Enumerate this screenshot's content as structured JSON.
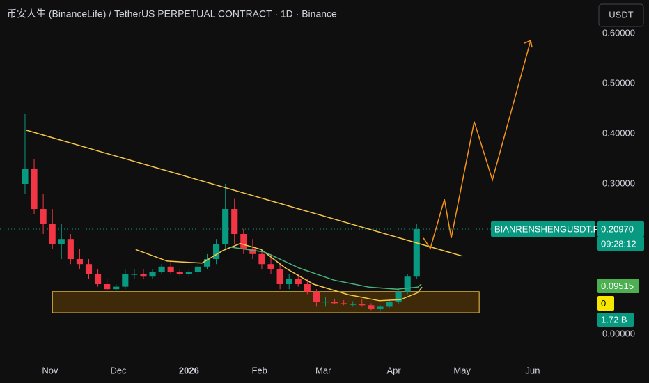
{
  "chart_data": {
    "type": "candlestick",
    "title": "币安人生 (BinanceLife) / TetherUS PERPETUAL CONTRACT · 1D · Binance",
    "currency_button": "USDT",
    "up_color": "#089981",
    "down_color": "#f23645",
    "xlim": [
      9,
      269
    ],
    "ylim": [
      -0.0486,
      0.6667
    ],
    "xticks": [
      {
        "value": 31,
        "label": "Nov"
      },
      {
        "value": 61,
        "label": "Dec"
      },
      {
        "value": 92,
        "label": "2026"
      },
      {
        "value": 123,
        "label": "Feb"
      },
      {
        "value": 151,
        "label": "Mar"
      },
      {
        "value": 182,
        "label": "Apr"
      },
      {
        "value": 212,
        "label": "May"
      },
      {
        "value": 243,
        "label": "Jun"
      }
    ],
    "yticks": [
      {
        "value": 0.6,
        "label": "0.60000"
      },
      {
        "value": 0.5,
        "label": "0.50000"
      },
      {
        "value": 0.4,
        "label": "0.40000"
      },
      {
        "value": 0.3,
        "label": "0.30000"
      },
      {
        "value": 0,
        "label": "0.00000"
      }
    ],
    "x": [
      20,
      24,
      28,
      32,
      36,
      40,
      44,
      48,
      52,
      56,
      60,
      64,
      68,
      72,
      76,
      80,
      84,
      88,
      92,
      96,
      100,
      104,
      108,
      112,
      116,
      120,
      124,
      128,
      132,
      136,
      140,
      144,
      148,
      152,
      156,
      160,
      164,
      168,
      172,
      176,
      180,
      184,
      188,
      192
    ],
    "ohlc": [
      [
        0.3,
        0.44,
        0.28,
        0.33
      ],
      [
        0.33,
        0.35,
        0.24,
        0.25
      ],
      [
        0.25,
        0.28,
        0.2,
        0.22
      ],
      [
        0.22,
        0.25,
        0.17,
        0.18
      ],
      [
        0.18,
        0.22,
        0.15,
        0.19
      ],
      [
        0.19,
        0.2,
        0.14,
        0.15
      ],
      [
        0.15,
        0.17,
        0.13,
        0.14
      ],
      [
        0.14,
        0.15,
        0.11,
        0.12
      ],
      [
        0.12,
        0.13,
        0.095,
        0.1
      ],
      [
        0.1,
        0.11,
        0.085,
        0.09
      ],
      [
        0.09,
        0.1,
        0.085,
        0.095
      ],
      [
        0.095,
        0.13,
        0.09,
        0.12
      ],
      [
        0.12,
        0.13,
        0.11,
        0.12
      ],
      [
        0.12,
        0.13,
        0.11,
        0.115
      ],
      [
        0.115,
        0.13,
        0.11,
        0.125
      ],
      [
        0.125,
        0.14,
        0.12,
        0.135
      ],
      [
        0.135,
        0.145,
        0.12,
        0.125
      ],
      [
        0.125,
        0.13,
        0.115,
        0.12
      ],
      [
        0.12,
        0.13,
        0.115,
        0.125
      ],
      [
        0.125,
        0.14,
        0.12,
        0.135
      ],
      [
        0.135,
        0.16,
        0.13,
        0.15
      ],
      [
        0.15,
        0.19,
        0.14,
        0.18
      ],
      [
        0.18,
        0.3,
        0.17,
        0.25
      ],
      [
        0.25,
        0.27,
        0.18,
        0.2
      ],
      [
        0.2,
        0.21,
        0.16,
        0.17
      ],
      [
        0.17,
        0.19,
        0.15,
        0.16
      ],
      [
        0.16,
        0.17,
        0.13,
        0.14
      ],
      [
        0.14,
        0.16,
        0.12,
        0.13
      ],
      [
        0.13,
        0.14,
        0.09,
        0.1
      ],
      [
        0.1,
        0.12,
        0.09,
        0.11
      ],
      [
        0.11,
        0.12,
        0.095,
        0.1
      ],
      [
        0.1,
        0.11,
        0.08,
        0.085
      ],
      [
        0.085,
        0.09,
        0.055,
        0.065
      ],
      [
        0.065,
        0.075,
        0.055,
        0.065
      ],
      [
        0.065,
        0.07,
        0.06,
        0.062
      ],
      [
        0.062,
        0.068,
        0.058,
        0.06
      ],
      [
        0.06,
        0.066,
        0.055,
        0.06
      ],
      [
        0.06,
        0.07,
        0.055,
        0.058
      ],
      [
        0.058,
        0.062,
        0.048,
        0.05
      ],
      [
        0.05,
        0.058,
        0.045,
        0.055
      ],
      [
        0.055,
        0.07,
        0.052,
        0.065
      ],
      [
        0.065,
        0.09,
        0.06,
        0.085
      ],
      [
        0.085,
        0.12,
        0.08,
        0.115
      ],
      [
        0.115,
        0.22,
        0.11,
        0.2097
      ]
    ],
    "lines": [
      {
        "color": "#f7c948",
        "x": [
          68.6,
          82.4,
          97.7,
          106.9,
          114.5,
          123.7,
          134.4,
          146.7,
          161.9,
          175.7,
          184.9,
          192.5,
          194.4
        ],
        "values": [
          0.169,
          0.146,
          0.142,
          0.167,
          0.181,
          0.169,
          0.132,
          0.1,
          0.079,
          0.067,
          0.069,
          0.083,
          0.094
        ]
      },
      {
        "color": "#4caf7d",
        "x": [
          110,
          125.2,
          140.5,
          155.8,
          171.1,
          183.4,
          192.5,
          194.1
        ],
        "values": [
          0.174,
          0.164,
          0.132,
          0.108,
          0.094,
          0.09,
          0.094,
          0.1
        ]
      },
      {
        "color": "#f7c948",
        "x": [
          20.6,
          212
        ],
        "values": [
          0.407,
          0.156
        ]
      },
      {
        "color": "#f7931a",
        "x": [
          195,
          198,
          204.2,
          207.2,
          217.3,
          225.3,
          242.1
        ],
        "values": [
          0.192,
          0.171,
          0.269,
          0.192,
          0.424,
          0.308,
          0.586
        ]
      }
    ],
    "zone": {
      "x": [
        32,
        219.5
      ],
      "values": [
        0.043,
        0.085
      ]
    },
    "symbol_label": "BIANRENSHENGUSDT.P",
    "last_price": {
      "value": 0.2097,
      "label": "0.20970"
    },
    "countdown": "09:28:12",
    "ma_value": "0.09515",
    "zero_value": "0",
    "volume_value": "1.72 B"
  }
}
